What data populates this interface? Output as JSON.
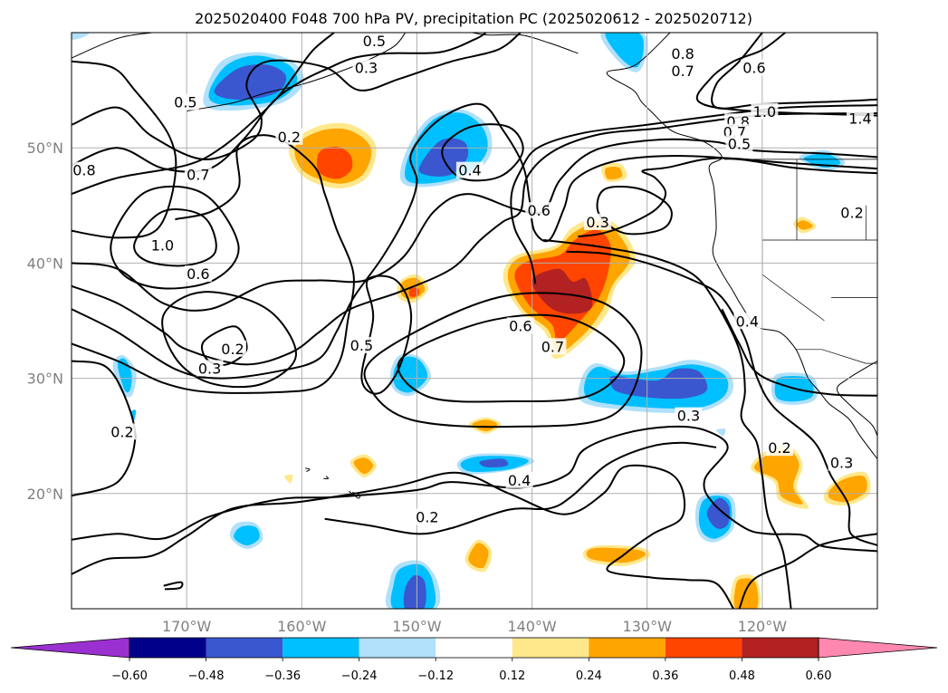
{
  "chart_data": {
    "type": "heatmap",
    "title": "2025020400 F048 700 hPa PV, precipitation PC (2025020612 - 2025020712)",
    "map": {
      "lon_range": [
        -180,
        -110
      ],
      "lat_range": [
        10,
        60
      ],
      "lon_ticks": [
        {
          "lon": -170,
          "label": "170°W"
        },
        {
          "lon": -160,
          "label": "160°W"
        },
        {
          "lon": -150,
          "label": "150°W"
        },
        {
          "lon": -140,
          "label": "140°W"
        },
        {
          "lon": -130,
          "label": "130°W"
        },
        {
          "lon": -120,
          "label": "120°W"
        }
      ],
      "lat_ticks": [
        {
          "lat": 50,
          "label": "50°N"
        },
        {
          "lat": 40,
          "label": "40°N"
        },
        {
          "lat": 30,
          "label": "30°N"
        },
        {
          "lat": 20,
          "label": "20°N"
        }
      ],
      "grid": true
    },
    "colorbar": {
      "levels": [
        -0.72,
        -0.6,
        -0.48,
        -0.36,
        -0.24,
        -0.12,
        0.12,
        0.24,
        0.36,
        0.48,
        0.6,
        0.72
      ],
      "tick_labels": [
        "−0.60",
        "−0.48",
        "−0.36",
        "−0.24",
        "−0.12",
        "0.12",
        "0.24",
        "0.36",
        "0.48",
        "0.60"
      ],
      "colors": [
        "#9b30d0",
        "#00008b",
        "#3a57cf",
        "#00bfff",
        "#b0e0fa",
        "#ffffff",
        "#ffe88c",
        "#ffa500",
        "#ff4500",
        "#b22222",
        "#ff88b0"
      ],
      "extend": "both"
    },
    "pv_contour_labels": [
      {
        "text": "0.5",
        "lon": -153.7,
        "lat": 59.2
      },
      {
        "text": "0.3",
        "lon": -154.4,
        "lat": 56.9
      },
      {
        "text": "0.8",
        "lon": -126.9,
        "lat": 58.1
      },
      {
        "text": "0.7",
        "lon": -126.9,
        "lat": 56.6
      },
      {
        "text": "0.6",
        "lon": -120.7,
        "lat": 56.9
      },
      {
        "text": "0.5",
        "lon": -170.1,
        "lat": 53.9
      },
      {
        "text": "0.2",
        "lon": -161.1,
        "lat": 50.9
      },
      {
        "text": "0.4",
        "lon": -145.4,
        "lat": 48.0
      },
      {
        "text": "0.8",
        "lon": -178.9,
        "lat": 48.0
      },
      {
        "text": "0.7",
        "lon": -169.0,
        "lat": 47.6
      },
      {
        "text": "0.6",
        "lon": -139.4,
        "lat": 44.5
      },
      {
        "text": "0.3",
        "lon": -134.3,
        "lat": 43.5
      },
      {
        "text": "1.0",
        "lon": -172.1,
        "lat": 41.5
      },
      {
        "text": "0.6",
        "lon": -169.0,
        "lat": 39.0
      },
      {
        "text": "0.5",
        "lon": -154.8,
        "lat": 32.8
      },
      {
        "text": "0.2",
        "lon": -166.0,
        "lat": 32.5
      },
      {
        "text": "0.3",
        "lon": -168.0,
        "lat": 30.8
      },
      {
        "text": "0.6",
        "lon": -141.0,
        "lat": 34.5
      },
      {
        "text": "0.7",
        "lon": -138.2,
        "lat": 32.7
      },
      {
        "text": "0.3",
        "lon": -126.4,
        "lat": 26.7
      },
      {
        "text": "0.2",
        "lon": -175.6,
        "lat": 25.3
      },
      {
        "text": "0.2",
        "lon": -118.5,
        "lat": 23.9
      },
      {
        "text": "0.4",
        "lon": -141.1,
        "lat": 21.1
      },
      {
        "text": "0.3",
        "lon": -113.1,
        "lat": 22.6
      },
      {
        "text": "0.2",
        "lon": -149.1,
        "lat": 17.9
      },
      {
        "text": "1.0",
        "lon": -119.8,
        "lat": 53.1
      },
      {
        "text": "0.8",
        "lon": -122.1,
        "lat": 52.2
      },
      {
        "text": "0.7",
        "lon": -122.4,
        "lat": 51.3
      },
      {
        "text": "0.5",
        "lon": -122.0,
        "lat": 50.3
      },
      {
        "text": "0.2",
        "lon": -112.2,
        "lat": 44.3
      },
      {
        "text": "0.4",
        "lon": -121.3,
        "lat": 34.9
      },
      {
        "text": "1.4",
        "lon": -111.5,
        "lat": 52.5
      }
    ]
  }
}
